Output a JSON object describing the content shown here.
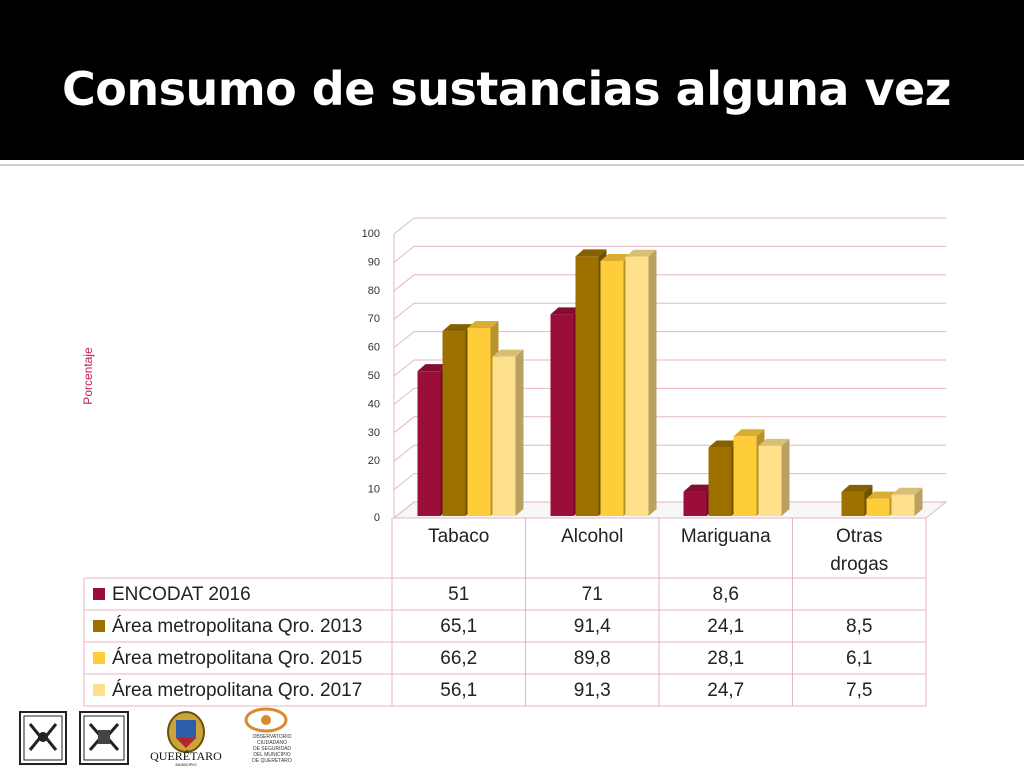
{
  "slide": {
    "title": "Consumo de sustancias alguna vez"
  },
  "chart_data": {
    "type": "bar",
    "ylabel": "Porcentaje",
    "ylim": [
      0,
      100
    ],
    "yticks": [
      0,
      10,
      20,
      30,
      40,
      50,
      60,
      70,
      80,
      90,
      100
    ],
    "categories": [
      "Tabaco",
      "Alcohol",
      "Mariguana",
      "Otras drogas"
    ],
    "series": [
      {
        "name": "ENCODAT 2016",
        "color": "#9b0e3a",
        "values": [
          51,
          71,
          8.6,
          null
        ],
        "labels": [
          "51",
          "71",
          "8,6",
          ""
        ]
      },
      {
        "name": "Área metropolitana Qro. 2013",
        "color": "#9c7100",
        "values": [
          65.1,
          91.4,
          24.1,
          8.5
        ],
        "labels": [
          "65,1",
          "91,4",
          "24,1",
          "8,5"
        ]
      },
      {
        "name": "Área metropolitana Qro. 2015",
        "color": "#ffcc3a",
        "values": [
          66.2,
          89.8,
          28.1,
          6.1
        ],
        "labels": [
          "66,2",
          "89,8",
          "28,1",
          "6,1"
        ]
      },
      {
        "name": "Área metropolitana Qro. 2017",
        "color": "#ffe08a",
        "values": [
          56.1,
          91.3,
          24.7,
          7.5
        ],
        "labels": [
          "56,1",
          "91,3",
          "24,7",
          "7,5"
        ]
      }
    ],
    "grid": true,
    "legend": "data-table"
  },
  "logos": {
    "municipio_logo_text": "QUERÉTARO",
    "municipio_logo_subtext": "MUNICIPIO",
    "observatorio_text": [
      "OBSERVATORIO",
      "CIUDADANO",
      "DE SEGURIDAD",
      "DEL MUNICIPIO",
      "DE QUERÉTARO"
    ]
  }
}
